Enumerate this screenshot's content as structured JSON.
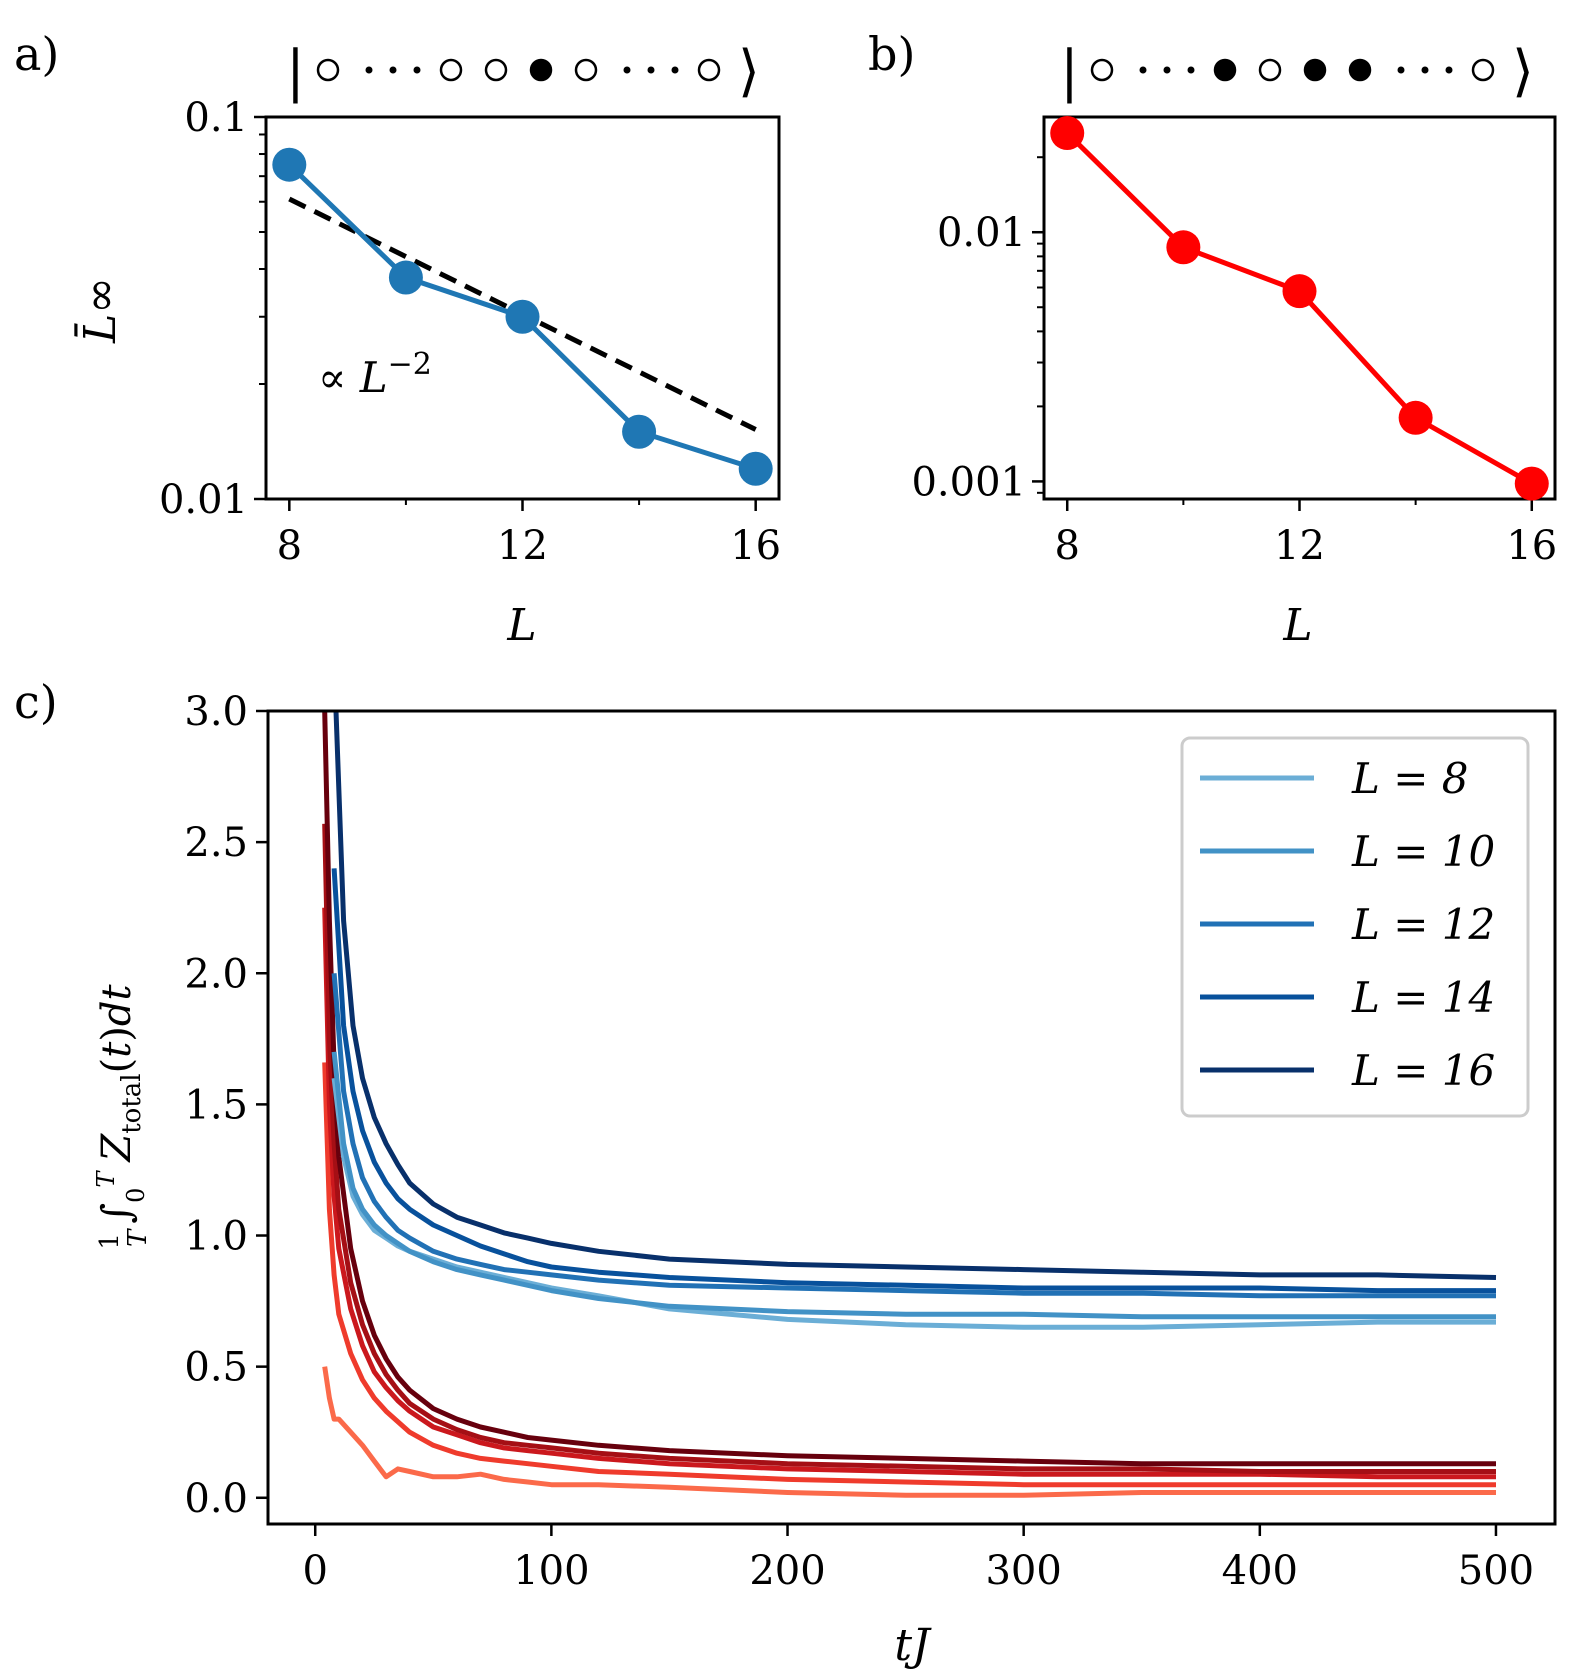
{
  "panel_labels": {
    "a": "a)",
    "b": "b)",
    "c": "c)"
  },
  "state_a": {
    "left": "|",
    "right": "⟩",
    "sites": [
      "empty",
      "dots",
      "empty",
      "empty",
      "filled",
      "empty",
      "dots",
      "empty"
    ]
  },
  "state_b": {
    "left": "|",
    "right": "⟩",
    "sites": [
      "empty",
      "dots",
      "filled",
      "empty",
      "filled",
      "filled",
      "dots",
      "empty"
    ]
  },
  "chart_data": [
    {
      "id": "a",
      "type": "line",
      "xlabel": "L",
      "ylabel": "L̄∞",
      "yscale": "log",
      "xlim": [
        7.6,
        16.4
      ],
      "ylim": [
        0.01,
        0.1
      ],
      "xticks": [
        8,
        12,
        16
      ],
      "xtick_labels": [
        "8",
        "12",
        "16"
      ],
      "yticks": [
        0.01,
        0.1
      ],
      "ytick_labels": [
        "0.01",
        "0.1"
      ],
      "color": "#1f77b4",
      "x": [
        8,
        10,
        12,
        14,
        16
      ],
      "y": [
        0.075,
        0.038,
        0.03,
        0.015,
        0.012
      ],
      "fit": {
        "style": "dashed",
        "color": "#000000",
        "x": [
          8,
          16
        ],
        "y": [
          0.061,
          0.0152
        ]
      },
      "annotation": "∝ L",
      "annotation_exp": "−2"
    },
    {
      "id": "b",
      "type": "line",
      "xlabel": "L",
      "ylabel": "",
      "yscale": "log",
      "xlim": [
        7.6,
        16.4
      ],
      "ylim": [
        0.00085,
        0.029
      ],
      "xticks": [
        8,
        12,
        16
      ],
      "xtick_labels": [
        "8",
        "12",
        "16"
      ],
      "yticks": [
        0.001,
        0.01
      ],
      "ytick_labels": [
        "0.001",
        "0.01"
      ],
      "color": "#ff0000",
      "x": [
        8,
        10,
        12,
        14,
        16
      ],
      "y": [
        0.025,
        0.0087,
        0.0058,
        0.0018,
        0.00098
      ]
    },
    {
      "id": "c",
      "type": "line",
      "xlabel": "tJ",
      "ylabel": "(1/T) ∫₀ᵀ Z_total(t) dt",
      "xlim": [
        -20,
        525
      ],
      "ylim": [
        -0.1,
        3.0
      ],
      "xticks": [
        0,
        100,
        200,
        300,
        400,
        500
      ],
      "xtick_labels": [
        "0",
        "100",
        "200",
        "300",
        "400",
        "500"
      ],
      "yticks": [
        0.0,
        0.5,
        1.0,
        1.5,
        2.0,
        2.5,
        3.0
      ],
      "ytick_labels": [
        "0.0",
        "0.5",
        "1.0",
        "1.5",
        "2.0",
        "2.5",
        "3.0"
      ],
      "grid": false,
      "legend_position": "top-right",
      "series": [
        {
          "name": "L = 8",
          "group": "blue",
          "color": "#6baed6",
          "x": [
            8,
            12,
            16,
            20,
            25,
            30,
            35,
            40,
            50,
            60,
            70,
            80,
            90,
            100,
            120,
            150,
            200,
            250,
            300,
            350,
            400,
            450,
            500
          ],
          "y": [
            1.6,
            1.3,
            1.15,
            1.08,
            1.02,
            0.99,
            0.96,
            0.94,
            0.91,
            0.88,
            0.86,
            0.84,
            0.82,
            0.8,
            0.77,
            0.72,
            0.68,
            0.66,
            0.65,
            0.65,
            0.66,
            0.67,
            0.67
          ]
        },
        {
          "name": "L = 10",
          "group": "blue",
          "color": "#4292c6",
          "x": [
            8,
            12,
            16,
            20,
            25,
            30,
            35,
            40,
            50,
            60,
            70,
            80,
            90,
            100,
            120,
            150,
            200,
            250,
            300,
            350,
            400,
            450,
            500
          ],
          "y": [
            1.7,
            1.35,
            1.18,
            1.1,
            1.04,
            1.0,
            0.97,
            0.94,
            0.9,
            0.87,
            0.85,
            0.83,
            0.81,
            0.79,
            0.76,
            0.73,
            0.71,
            0.7,
            0.7,
            0.69,
            0.69,
            0.69,
            0.69
          ]
        },
        {
          "name": "L = 12",
          "group": "blue",
          "color": "#2171b5",
          "x": [
            8,
            12,
            16,
            20,
            25,
            30,
            35,
            40,
            50,
            60,
            70,
            80,
            90,
            100,
            120,
            150,
            200,
            250,
            300,
            350,
            400,
            450,
            500
          ],
          "y": [
            2.0,
            1.55,
            1.35,
            1.22,
            1.13,
            1.07,
            1.02,
            0.99,
            0.94,
            0.91,
            0.89,
            0.87,
            0.86,
            0.85,
            0.83,
            0.81,
            0.8,
            0.79,
            0.78,
            0.78,
            0.77,
            0.77,
            0.77
          ]
        },
        {
          "name": "L = 14",
          "group": "blue",
          "color": "#08519c",
          "x": [
            8,
            12,
            16,
            20,
            25,
            30,
            35,
            40,
            50,
            60,
            70,
            80,
            90,
            100,
            120,
            150,
            200,
            250,
            300,
            350,
            400,
            450,
            500
          ],
          "y": [
            2.4,
            1.8,
            1.55,
            1.4,
            1.28,
            1.2,
            1.14,
            1.1,
            1.04,
            1.0,
            0.96,
            0.93,
            0.9,
            0.88,
            0.86,
            0.84,
            0.82,
            0.81,
            0.8,
            0.8,
            0.8,
            0.79,
            0.79
          ]
        },
        {
          "name": "L = 16",
          "group": "blue",
          "color": "#08306b",
          "x": [
            8,
            12,
            16,
            20,
            25,
            30,
            35,
            40,
            50,
            60,
            70,
            80,
            90,
            100,
            120,
            150,
            200,
            250,
            300,
            350,
            400,
            450,
            500
          ],
          "y": [
            3.2,
            2.2,
            1.8,
            1.6,
            1.45,
            1.35,
            1.27,
            1.2,
            1.12,
            1.07,
            1.04,
            1.01,
            0.99,
            0.97,
            0.94,
            0.91,
            0.89,
            0.88,
            0.87,
            0.86,
            0.85,
            0.85,
            0.84
          ]
        },
        {
          "group": "red",
          "color": "#fb6a4a",
          "x": [
            4,
            6,
            8,
            10,
            15,
            20,
            25,
            30,
            35,
            40,
            50,
            60,
            70,
            80,
            90,
            100,
            120,
            150,
            200,
            250,
            300,
            350,
            400,
            450,
            500
          ],
          "y": [
            0.5,
            0.38,
            0.3,
            0.3,
            0.25,
            0.2,
            0.14,
            0.08,
            0.11,
            0.1,
            0.08,
            0.08,
            0.09,
            0.07,
            0.06,
            0.05,
            0.05,
            0.04,
            0.02,
            0.01,
            0.01,
            0.02,
            0.02,
            0.02,
            0.02
          ]
        },
        {
          "group": "red",
          "color": "#ef3b2c",
          "x": [
            4,
            6,
            8,
            10,
            15,
            20,
            25,
            30,
            35,
            40,
            50,
            60,
            70,
            80,
            90,
            100,
            120,
            150,
            200,
            250,
            300,
            350,
            400,
            450,
            500
          ],
          "y": [
            1.66,
            1.1,
            0.85,
            0.7,
            0.55,
            0.45,
            0.38,
            0.33,
            0.29,
            0.25,
            0.2,
            0.17,
            0.15,
            0.14,
            0.13,
            0.12,
            0.1,
            0.09,
            0.07,
            0.06,
            0.05,
            0.05,
            0.05,
            0.05,
            0.05
          ]
        },
        {
          "group": "red",
          "color": "#cb181d",
          "x": [
            4,
            6,
            8,
            10,
            15,
            20,
            25,
            30,
            35,
            40,
            50,
            60,
            70,
            80,
            90,
            100,
            120,
            150,
            200,
            250,
            300,
            350,
            400,
            450,
            500
          ],
          "y": [
            2.25,
            1.5,
            1.15,
            0.95,
            0.72,
            0.58,
            0.48,
            0.42,
            0.37,
            0.33,
            0.27,
            0.24,
            0.21,
            0.19,
            0.18,
            0.17,
            0.15,
            0.13,
            0.11,
            0.1,
            0.09,
            0.09,
            0.09,
            0.08,
            0.08
          ]
        },
        {
          "group": "red",
          "color": "#a50f15",
          "x": [
            4,
            6,
            8,
            10,
            15,
            20,
            25,
            30,
            35,
            40,
            50,
            60,
            70,
            80,
            90,
            100,
            120,
            150,
            200,
            250,
            300,
            350,
            400,
            450,
            500
          ],
          "y": [
            2.57,
            1.75,
            1.35,
            1.1,
            0.82,
            0.66,
            0.55,
            0.47,
            0.41,
            0.36,
            0.3,
            0.26,
            0.23,
            0.21,
            0.2,
            0.19,
            0.17,
            0.15,
            0.13,
            0.12,
            0.11,
            0.11,
            0.1,
            0.1,
            0.1
          ]
        },
        {
          "group": "red",
          "color": "#67000d",
          "x": [
            4,
            6,
            8,
            10,
            15,
            20,
            25,
            30,
            35,
            40,
            50,
            60,
            70,
            80,
            90,
            100,
            120,
            150,
            200,
            250,
            300,
            350,
            400,
            450,
            500
          ],
          "y": [
            3.0,
            2.2,
            1.65,
            1.3,
            0.95,
            0.75,
            0.62,
            0.53,
            0.46,
            0.41,
            0.34,
            0.3,
            0.27,
            0.25,
            0.23,
            0.22,
            0.2,
            0.18,
            0.16,
            0.15,
            0.14,
            0.13,
            0.13,
            0.13,
            0.13
          ]
        }
      ]
    }
  ]
}
